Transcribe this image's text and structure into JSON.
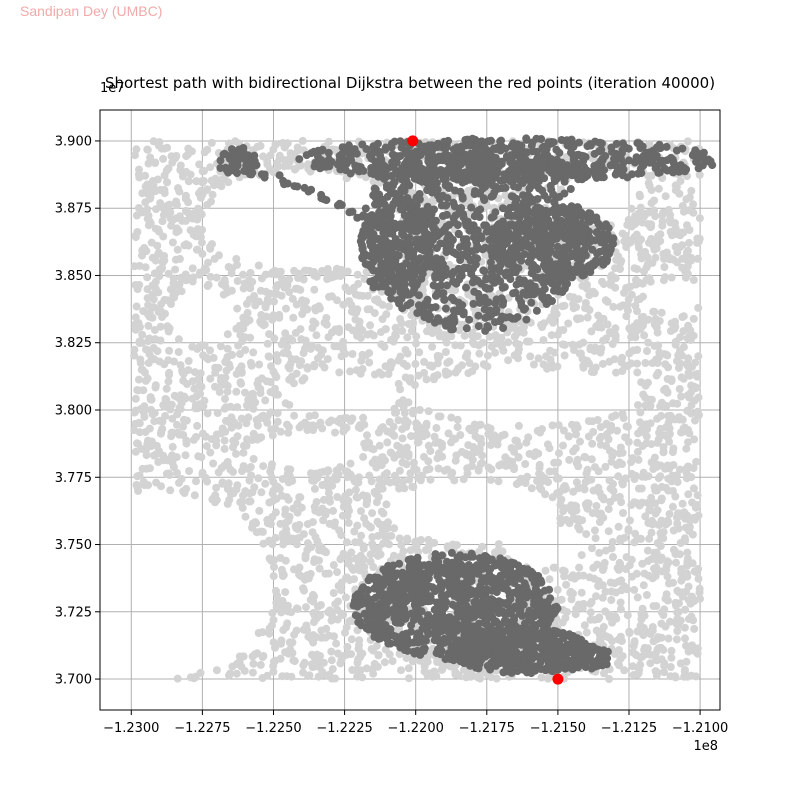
{
  "watermark": "Sandipan Dey (UMBC)",
  "colors": {
    "background_nodes": "#d3d3d3",
    "explored_nodes": "#696969",
    "endpoints": "#ff0000",
    "grid": "#b0b0b0"
  },
  "chart_data": {
    "type": "scatter",
    "title": "Shortest path with bidirectional Dijkstra between the red points (iteration 40000)",
    "xlabel": "",
    "ylabel": "",
    "x_offset_label": "1e8",
    "y_offset_label": "1e7",
    "xlim": [
      -1.2311,
      -1.2093
    ],
    "ylim": [
      3.6885,
      3.9115
    ],
    "grid": true,
    "xticks": [
      -1.23,
      -1.2275,
      -1.225,
      -1.2225,
      -1.22,
      -1.2175,
      -1.215,
      -1.2125,
      -1.21
    ],
    "xtick_labels": [
      "−1.2300",
      "−1.2275",
      "−1.2250",
      "−1.2225",
      "−1.2200",
      "−1.2175",
      "−1.2150",
      "−1.2125",
      "−1.2100"
    ],
    "yticks": [
      3.7,
      3.725,
      3.75,
      3.775,
      3.8,
      3.825,
      3.85,
      3.875,
      3.9
    ],
    "ytick_labels": [
      "3.700",
      "3.725",
      "3.750",
      "3.775",
      "3.800",
      "3.825",
      "3.850",
      "3.875",
      "3.900"
    ],
    "background_extent": {
      "x": [
        -1.2299,
        -1.21
      ],
      "y": [
        3.7,
        3.9
      ]
    },
    "background_voids": [
      {
        "x": -1.224,
        "y": 3.87,
        "rx": 0.0035,
        "ry": 0.018
      },
      {
        "x": -1.216,
        "y": 3.805,
        "rx": 0.004,
        "ry": 0.01
      },
      {
        "x": -1.218,
        "y": 3.762,
        "rx": 0.003,
        "ry": 0.012
      },
      {
        "x": -1.2225,
        "y": 3.805,
        "rx": 0.002,
        "ry": 0.008
      },
      {
        "x": -1.229,
        "y": 3.735,
        "rx": 0.004,
        "ry": 0.035
      },
      {
        "x": -1.2135,
        "y": 3.88,
        "rx": 0.0012,
        "ry": 0.01
      },
      {
        "x": -1.211,
        "y": 3.842,
        "rx": 0.001,
        "ry": 0.006
      },
      {
        "x": -1.224,
        "y": 3.785,
        "rx": 0.002,
        "ry": 0.006
      },
      {
        "x": -1.2155,
        "y": 3.75,
        "rx": 0.0015,
        "ry": 0.008
      },
      {
        "x": -1.2275,
        "y": 3.835,
        "rx": 0.0012,
        "ry": 0.01
      }
    ],
    "explored_regions": [
      {
        "name": "",
        "cx": -1.218,
        "cy": 3.865,
        "rx": 0.004,
        "ry": 0.036,
        "count": 950
      },
      {
        "name": "",
        "cx": -1.2168,
        "cy": 3.893,
        "rx": 0.0075,
        "ry": 0.008,
        "count": 550
      },
      {
        "name": "",
        "cx": -1.2152,
        "cy": 3.862,
        "rx": 0.0022,
        "ry": 0.014,
        "count": 320
      },
      {
        "name": "",
        "cx": -1.2207,
        "cy": 3.86,
        "rx": 0.0012,
        "ry": 0.02,
        "count": 180
      },
      {
        "name": "",
        "cx": -1.2186,
        "cy": 3.727,
        "rx": 0.0036,
        "ry": 0.02,
        "count": 900
      },
      {
        "name": "",
        "cx": -1.2163,
        "cy": 3.7105,
        "rx": 0.0025,
        "ry": 0.0085,
        "count": 320
      },
      {
        "name": "",
        "cx": -1.2143,
        "cy": 3.708,
        "rx": 0.0012,
        "ry": 0.005,
        "count": 80
      },
      {
        "name": "",
        "cx": -1.2262,
        "cy": 3.8925,
        "rx": 0.0007,
        "ry": 0.005,
        "count": 70
      }
    ],
    "explored_path_arm": {
      "x": [
        -1.227,
        -1.2258,
        -1.2248,
        -1.2238,
        -1.2228,
        -1.222,
        -1.2213
      ],
      "y": [
        3.89,
        3.888,
        3.886,
        3.881,
        3.877,
        3.872,
        3.868
      ]
    },
    "endpoints": {
      "x": [
        -1.2201,
        -1.215
      ],
      "y": [
        3.9,
        3.7
      ]
    }
  }
}
